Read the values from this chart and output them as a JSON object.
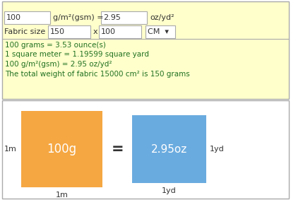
{
  "fig_w": 4.12,
  "fig_h": 2.83,
  "dpi": 100,
  "bg_top": "#ffffcc",
  "bg_bottom": "#ffffff",
  "border_color": "#aaaaaa",
  "orange_color": "#f5a742",
  "blue_color": "#6aabdf",
  "text_dark": "#333333",
  "text_green": "#207020",
  "input_bg": "#ffffff",
  "input_border": "#aaaaaa",
  "row1_box1": "100",
  "row1_mid": "g/m²(gsm) = ",
  "row1_val": "2.95",
  "row1_unit": "oz/yd²",
  "row2_label": "Fabric size",
  "row2_val1": "150",
  "row2_x": "x",
  "row2_val2": "100",
  "row2_unit": "CM  ▾",
  "line1": "100 grams = 3.53 ounce(s)",
  "line2": "1 square meter = 1.19599 square yard",
  "line3": "100 g/m²(gsm) = 2.95 oz/yd²",
  "line4": "The total weight of fabric 15000 cm² is 150 grams",
  "orange_label": "100g",
  "blue_label": "2.95oz",
  "lbl_1m_left": "1m",
  "lbl_1m_bottom": "1m",
  "lbl_1yd_right": "1yd",
  "lbl_1yd_bottom": "1yd",
  "eq_sign": "="
}
